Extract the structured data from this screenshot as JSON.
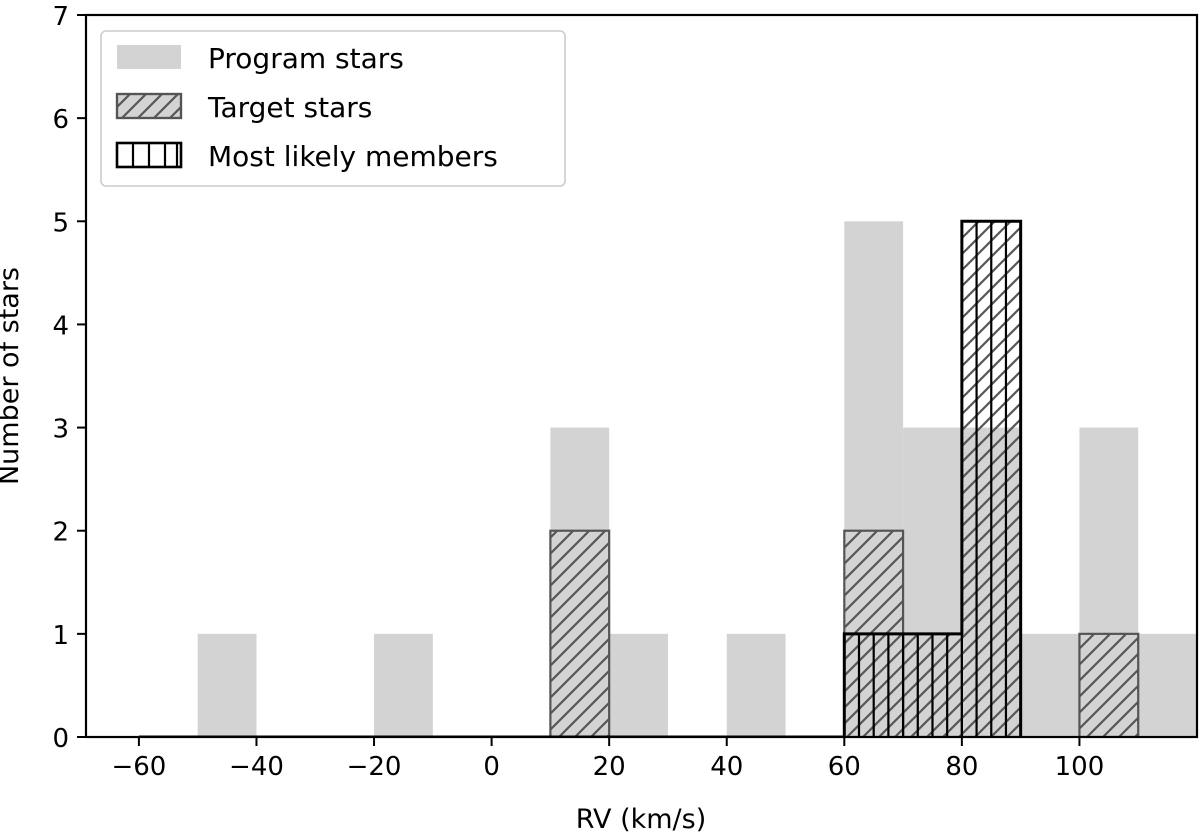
{
  "chart_data": {
    "type": "histogram",
    "title": "",
    "xlabel": "RV (km/s)",
    "ylabel": "Number of stars",
    "xlim": [
      -69,
      120
    ],
    "ylim": [
      0,
      7
    ],
    "xticks": [
      -60,
      -40,
      -20,
      0,
      20,
      40,
      60,
      80,
      100
    ],
    "yticks": [
      0,
      1,
      2,
      3,
      4,
      5,
      6,
      7
    ],
    "bin_width": 10,
    "legend_position": "top-left",
    "series": [
      {
        "name": "Program stars",
        "style": "filled-gray",
        "bins": [
          {
            "left": -50,
            "count": 1
          },
          {
            "left": -20,
            "count": 1
          },
          {
            "left": 10,
            "count": 3
          },
          {
            "left": 20,
            "count": 1
          },
          {
            "left": 40,
            "count": 1
          },
          {
            "left": 60,
            "count": 5
          },
          {
            "left": 70,
            "count": 3
          },
          {
            "left": 80,
            "count": 3
          },
          {
            "left": 90,
            "count": 1
          },
          {
            "left": 100,
            "count": 3
          },
          {
            "left": 110,
            "count": 1
          }
        ]
      },
      {
        "name": "Target stars",
        "style": "diagonal-hatch",
        "bins": [
          {
            "left": 10,
            "count": 2
          },
          {
            "left": 60,
            "count": 2
          },
          {
            "left": 70,
            "count": 1
          },
          {
            "left": 80,
            "count": 5
          },
          {
            "left": 100,
            "count": 1
          }
        ]
      },
      {
        "name": "Most likely members",
        "style": "vertical-hatch-step",
        "range": [
          -60,
          90
        ],
        "step_edges": [
          -60,
          60,
          80,
          90
        ],
        "step_counts": [
          0,
          1,
          5
        ],
        "sub_bin_width": 5,
        "sub_bins": [
          {
            "left": 60,
            "count": 1
          },
          {
            "left": 65,
            "count": 1
          },
          {
            "left": 70,
            "count": 1
          },
          {
            "left": 75,
            "count": 1
          },
          {
            "left": 80,
            "count": 5
          },
          {
            "left": 85,
            "count": 5
          }
        ]
      }
    ],
    "colors": {
      "program_fill": "#d3d3d3",
      "target_edge": "#555555",
      "target_hatch": "#555555",
      "members_edge": "#000000",
      "axis": "#000000"
    }
  }
}
